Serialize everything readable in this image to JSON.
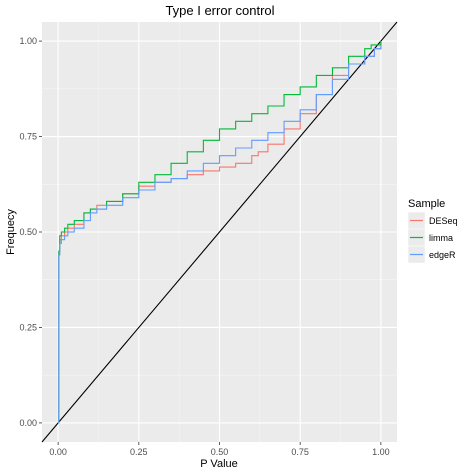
{
  "chart_data": {
    "type": "line",
    "title": "Type I error control",
    "xlabel": "P Value",
    "ylabel": "Frequecy",
    "xlim": [
      -0.05,
      1.05
    ],
    "ylim": [
      -0.05,
      1.05
    ],
    "x_ticks": [
      0.0,
      0.25,
      0.5,
      0.75,
      1.0
    ],
    "x_tick_labels": [
      "0.00",
      "0.25",
      "0.50",
      "0.75",
      "1.00"
    ],
    "y_ticks": [
      0.0,
      0.25,
      0.5,
      0.75,
      1.0
    ],
    "y_tick_labels": [
      "0.00",
      "0.25",
      "0.50",
      "0.75",
      "1.00"
    ],
    "grid": true,
    "background": "#ebebeb",
    "legend": {
      "title": "Sample",
      "position": "right"
    },
    "reference_line": {
      "x": [
        -0.05,
        1.05
      ],
      "y": [
        -0.05,
        1.05
      ],
      "color": "#000000"
    },
    "series": [
      {
        "name": "DESeq",
        "color": "#f8766d",
        "x": [
          0.0,
          0.002,
          0.005,
          0.01,
          0.02,
          0.03,
          0.05,
          0.08,
          0.1,
          0.12,
          0.15,
          0.2,
          0.25,
          0.3,
          0.35,
          0.4,
          0.45,
          0.5,
          0.55,
          0.6,
          0.62,
          0.65,
          0.7,
          0.75,
          0.8,
          0.85,
          0.9,
          0.95,
          0.98,
          1.0
        ],
        "y": [
          0.0,
          0.44,
          0.48,
          0.49,
          0.5,
          0.51,
          0.52,
          0.55,
          0.56,
          0.57,
          0.58,
          0.6,
          0.62,
          0.63,
          0.64,
          0.65,
          0.66,
          0.67,
          0.68,
          0.7,
          0.71,
          0.73,
          0.77,
          0.81,
          0.86,
          0.91,
          0.94,
          0.96,
          0.98,
          1.0
        ]
      },
      {
        "name": "limma",
        "color": "#00ba38",
        "x": [
          0.0,
          0.002,
          0.005,
          0.01,
          0.02,
          0.03,
          0.05,
          0.08,
          0.1,
          0.15,
          0.2,
          0.25,
          0.3,
          0.35,
          0.4,
          0.45,
          0.5,
          0.55,
          0.6,
          0.65,
          0.7,
          0.75,
          0.8,
          0.85,
          0.9,
          0.95,
          0.97,
          1.0
        ],
        "y": [
          0.0,
          0.45,
          0.49,
          0.5,
          0.51,
          0.52,
          0.53,
          0.55,
          0.56,
          0.58,
          0.6,
          0.63,
          0.65,
          0.68,
          0.71,
          0.74,
          0.77,
          0.79,
          0.81,
          0.83,
          0.86,
          0.88,
          0.91,
          0.93,
          0.96,
          0.98,
          0.99,
          1.0
        ]
      },
      {
        "name": "edgeR",
        "color": "#619cff",
        "x": [
          0.0,
          0.002,
          0.005,
          0.01,
          0.02,
          0.03,
          0.05,
          0.08,
          0.1,
          0.12,
          0.15,
          0.2,
          0.25,
          0.3,
          0.35,
          0.4,
          0.45,
          0.5,
          0.55,
          0.6,
          0.65,
          0.7,
          0.75,
          0.8,
          0.85,
          0.9,
          0.95,
          0.98,
          1.0
        ],
        "y": [
          0.0,
          0.44,
          0.47,
          0.48,
          0.49,
          0.5,
          0.51,
          0.53,
          0.55,
          0.56,
          0.57,
          0.59,
          0.61,
          0.63,
          0.64,
          0.66,
          0.68,
          0.7,
          0.72,
          0.74,
          0.76,
          0.79,
          0.82,
          0.86,
          0.9,
          0.94,
          0.96,
          0.98,
          0.99
        ]
      }
    ]
  }
}
